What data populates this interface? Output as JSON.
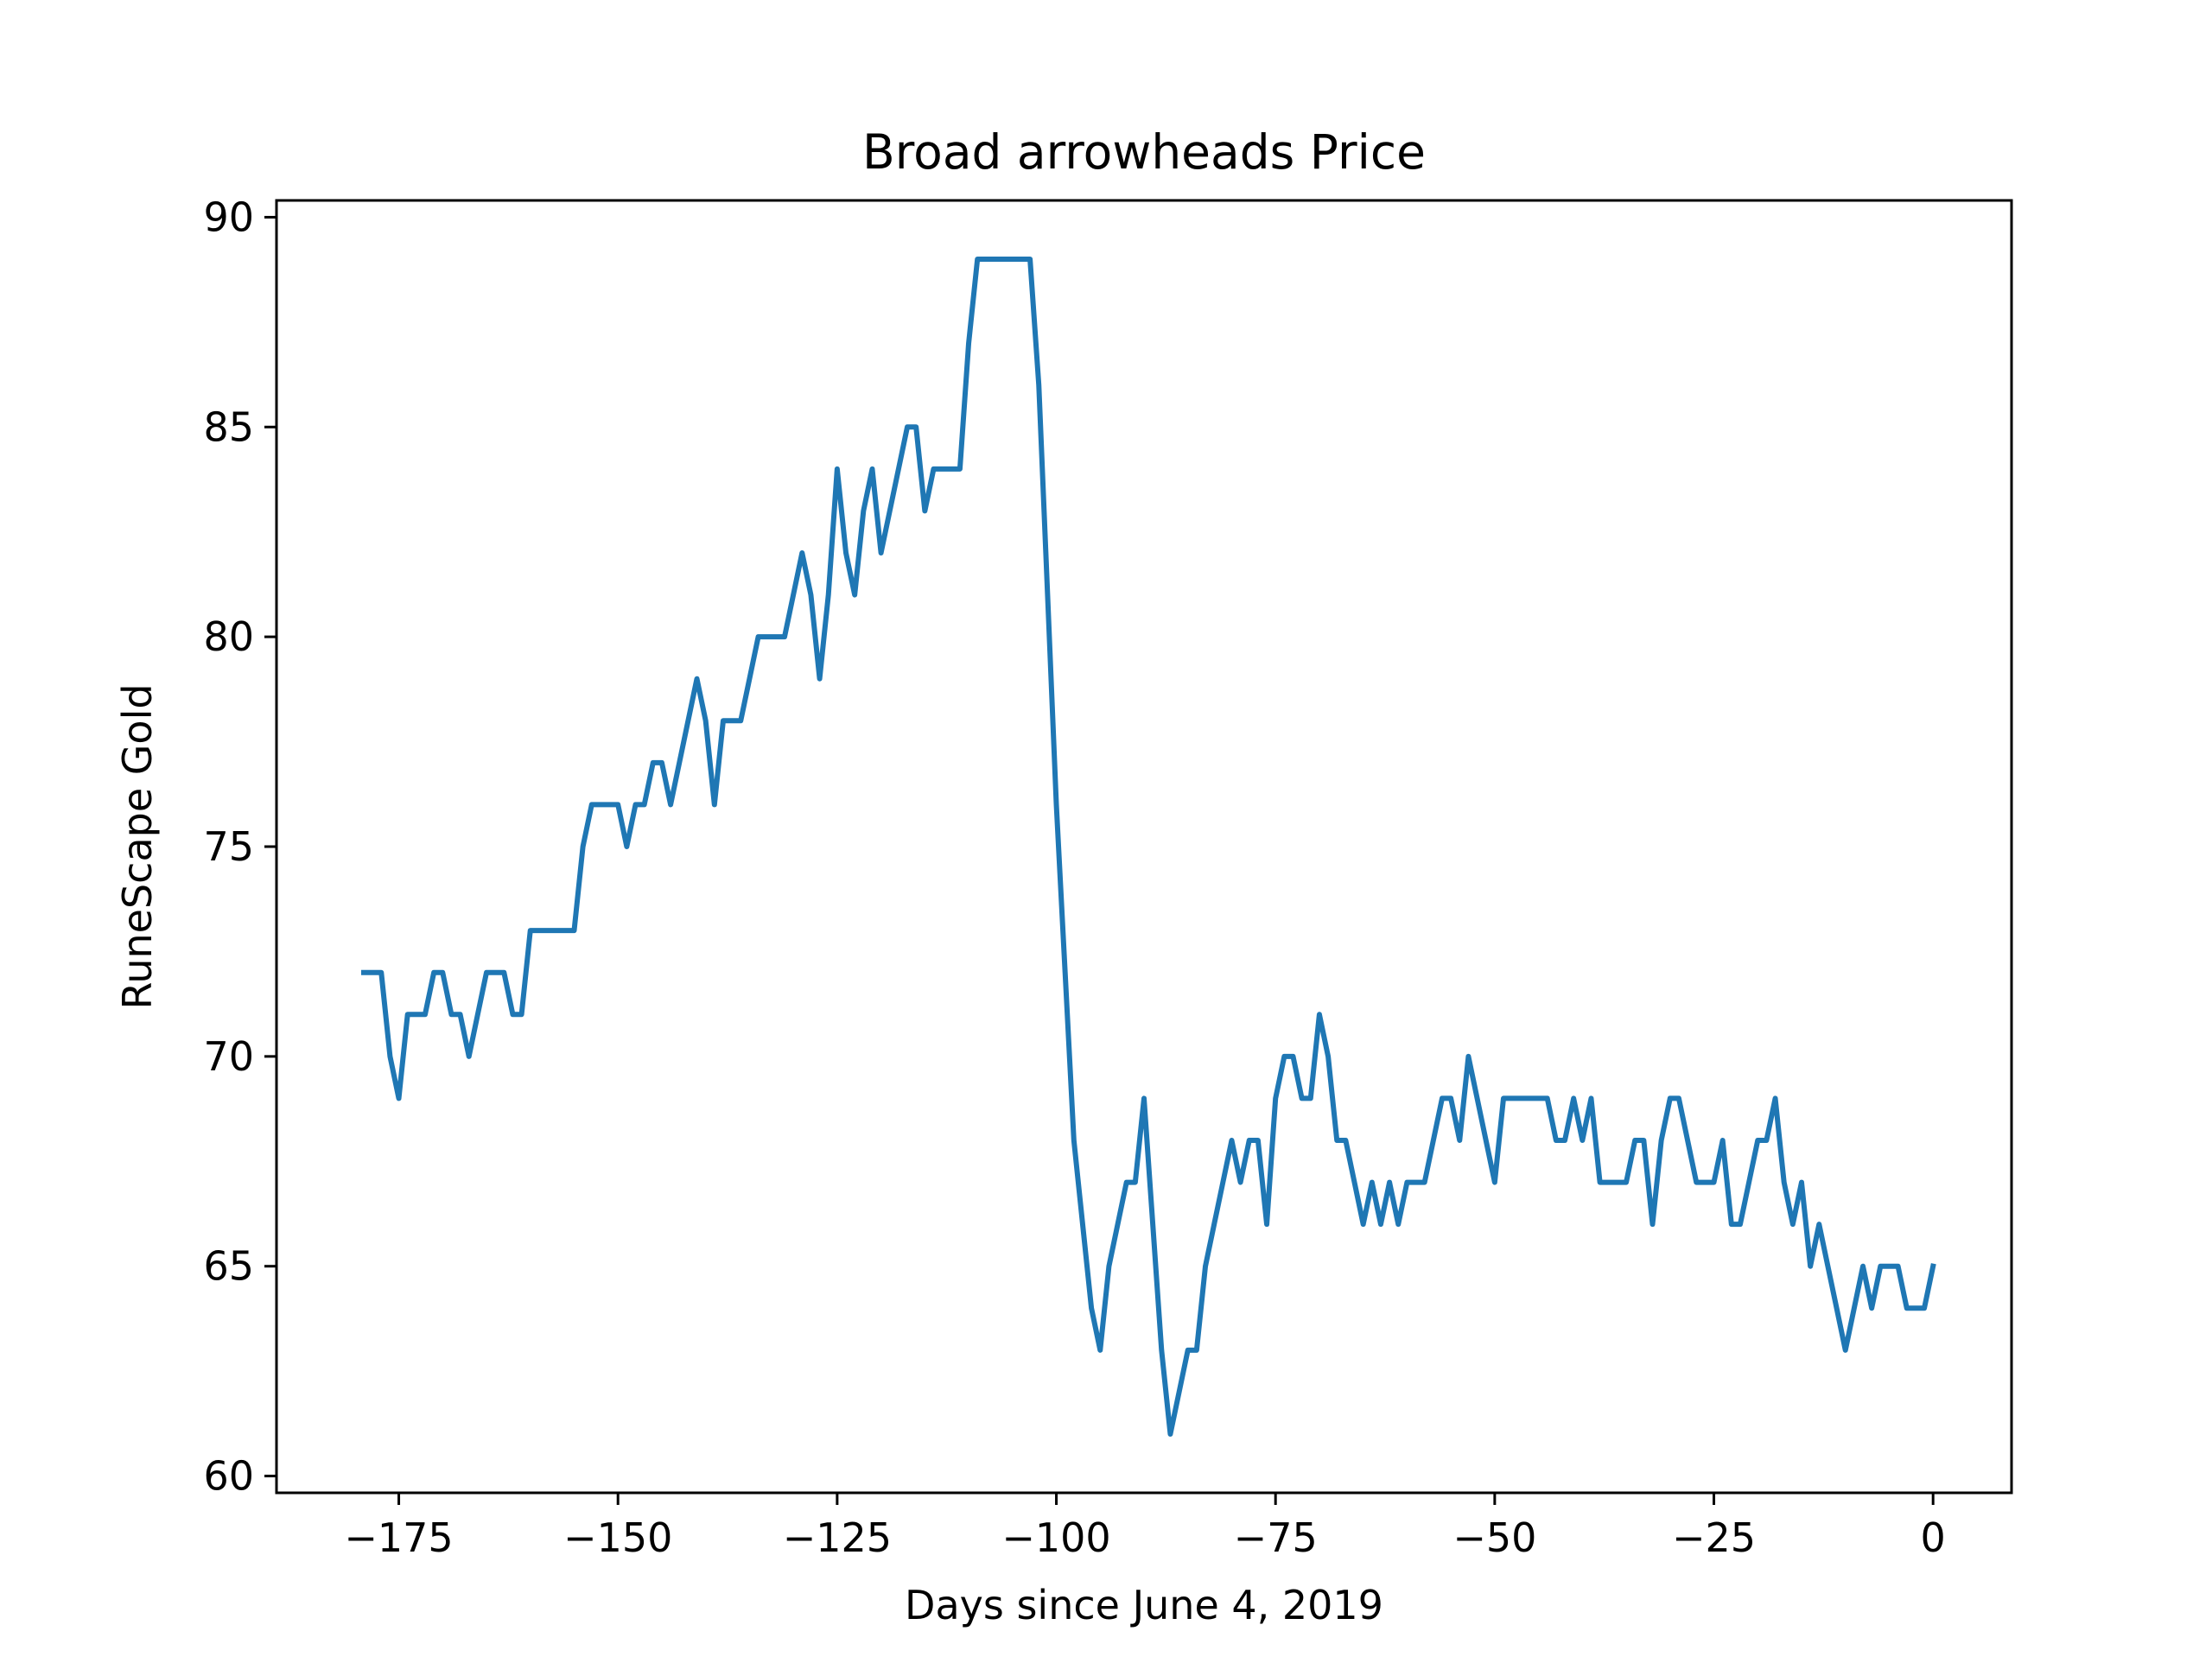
{
  "chart_data": {
    "type": "line",
    "title": "Broad arrowheads Price",
    "xlabel": "Days since June 4, 2019",
    "ylabel": "RuneScape Gold",
    "xlim": [
      -188.95,
      8.95
    ],
    "ylim": [
      59.6,
      90.4
    ],
    "xticks": [
      -175,
      -150,
      -125,
      -100,
      -75,
      -50,
      -25,
      0
    ],
    "xtick_labels": [
      "−175",
      "−150",
      "−125",
      "−100",
      "−75",
      "−50",
      "−25",
      "0"
    ],
    "yticks": [
      60,
      65,
      70,
      75,
      80,
      85,
      90
    ],
    "ytick_labels": [
      "60",
      "65",
      "70",
      "75",
      "80",
      "85",
      "90"
    ],
    "grid": false,
    "series": [
      {
        "color": "#1f77b4",
        "x": [
          -179,
          -178,
          -177,
          -176,
          -175,
          -174,
          -173,
          -172,
          -171,
          -170,
          -169,
          -168,
          -167,
          -166,
          -165,
          -164,
          -163,
          -162,
          -161,
          -160,
          -159,
          -158,
          -157,
          -156,
          -155,
          -154,
          -153,
          -152,
          -151,
          -150,
          -149,
          -148,
          -147,
          -146,
          -145,
          -144,
          -143,
          -142,
          -141,
          -140,
          -139,
          -138,
          -137,
          -136,
          -135,
          -134,
          -133,
          -132,
          -131,
          -130,
          -129,
          -128,
          -127,
          -126,
          -125,
          -124,
          -123,
          -122,
          -121,
          -120,
          -119,
          -118,
          -117,
          -116,
          -115,
          -114,
          -113,
          -112,
          -111,
          -110,
          -109,
          -108,
          -107,
          -106,
          -105,
          -104,
          -103,
          -102,
          -101,
          -100,
          -99,
          -98,
          -97,
          -96,
          -95,
          -94,
          -93,
          -92,
          -91,
          -90,
          -89,
          -88,
          -87,
          -86,
          -85,
          -84,
          -83,
          -82,
          -81,
          -80,
          -79,
          -78,
          -77,
          -76,
          -75,
          -74,
          -73,
          -72,
          -71,
          -70,
          -69,
          -68,
          -67,
          -66,
          -65,
          -64,
          -63,
          -62,
          -61,
          -60,
          -59,
          -58,
          -57,
          -56,
          -55,
          -54,
          -53,
          -52,
          -51,
          -50,
          -49,
          -48,
          -47,
          -46,
          -45,
          -44,
          -43,
          -42,
          -41,
          -40,
          -39,
          -38,
          -37,
          -36,
          -35,
          -34,
          -33,
          -32,
          -31,
          -30,
          -29,
          -28,
          -27,
          -26,
          -25,
          -24,
          -23,
          -22,
          -21,
          -20,
          -19,
          -18,
          -17,
          -16,
          -15,
          -14,
          -13,
          -12,
          -11,
          -10,
          -9,
          -8,
          -7,
          -6,
          -5,
          -4,
          -3,
          -2,
          -1,
          0
        ],
        "y": [
          72,
          72,
          72,
          70,
          69,
          71,
          71,
          71,
          72,
          72,
          71,
          71,
          70,
          71,
          72,
          72,
          72,
          71,
          71,
          73,
          73,
          73,
          73,
          73,
          73,
          75,
          76,
          76,
          76,
          76,
          75,
          76,
          76,
          77,
          77,
          76,
          77,
          78,
          79,
          78,
          76,
          78,
          78,
          78,
          79,
          80,
          80,
          80,
          80,
          81,
          82,
          81,
          79,
          81,
          84,
          82,
          81,
          83,
          84,
          82,
          83,
          84,
          85,
          85,
          83,
          84,
          84,
          84,
          84,
          87,
          89,
          89,
          89,
          89,
          89,
          89,
          89,
          86,
          81,
          76,
          72,
          68,
          66,
          64,
          63,
          65,
          66,
          67,
          67,
          69,
          66,
          63,
          61,
          62,
          63,
          63,
          65,
          66,
          67,
          68,
          67,
          68,
          68,
          66,
          69,
          70,
          70,
          69,
          69,
          71,
          70,
          68,
          68,
          67,
          66,
          67,
          66,
          67,
          66,
          67,
          67,
          67,
          68,
          69,
          69,
          68,
          70,
          69,
          68,
          67,
          69,
          69,
          69,
          69,
          69,
          69,
          68,
          68,
          69,
          68,
          69,
          67,
          67,
          67,
          67,
          68,
          68,
          66,
          68,
          69,
          69,
          68,
          67,
          67,
          67,
          68,
          66,
          66,
          67,
          68,
          68,
          69,
          67,
          66,
          67,
          65,
          66,
          65,
          64,
          63,
          64,
          65,
          64,
          65,
          65,
          65,
          64,
          64,
          64,
          65
        ]
      }
    ]
  }
}
